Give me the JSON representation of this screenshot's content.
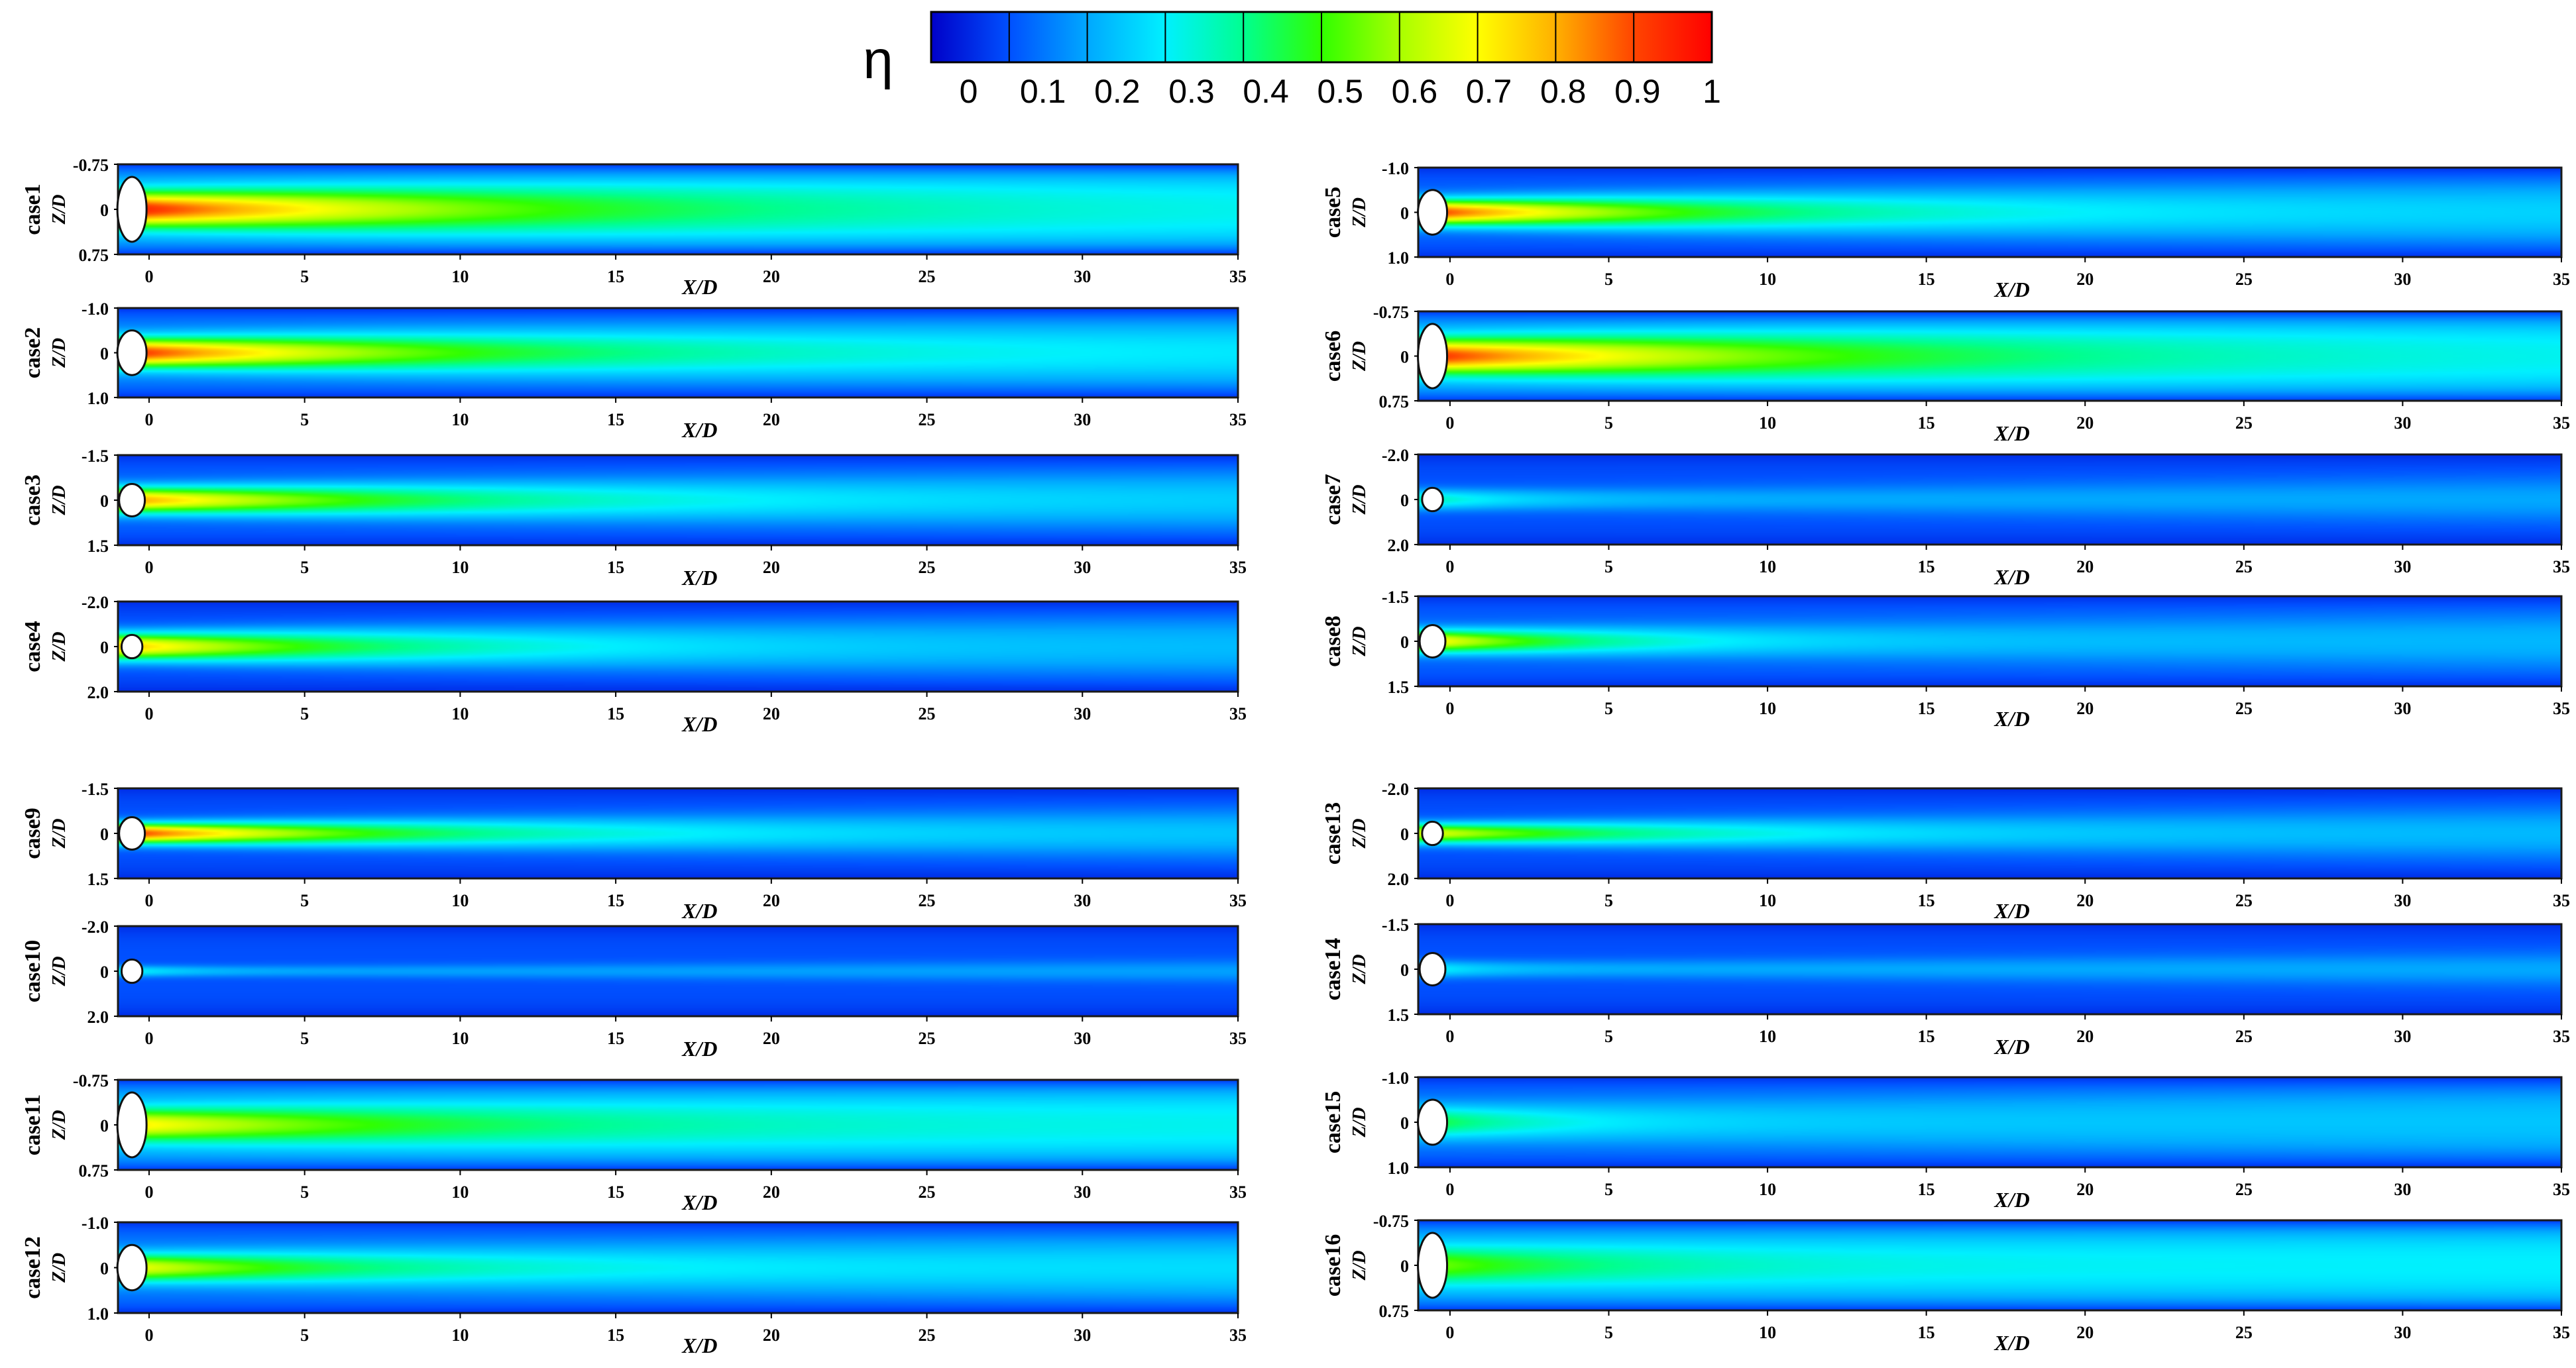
{
  "figure": {
    "colorbar": {
      "symbol": "η",
      "ticks": [
        "0",
        "0.1",
        "0.2",
        "0.3",
        "0.4",
        "0.5",
        "0.6",
        "0.7",
        "0.8",
        "0.9",
        "1"
      ],
      "colormap": [
        "#0000c8",
        "#0050ff",
        "#00a8ff",
        "#00f0ff",
        "#00ff90",
        "#30ff00",
        "#a8ff00",
        "#ffff00",
        "#ffb000",
        "#ff4500",
        "#ff0000"
      ]
    },
    "shared_axes": {
      "x_label": "X/D",
      "y_label": "Z/D",
      "x_ticks": [
        "0",
        "5",
        "10",
        "15",
        "20",
        "25",
        "30",
        "35"
      ]
    }
  },
  "chart_data": [
    {
      "type": "heatmap",
      "case": "case1",
      "y_ticks": [
        "-0.75",
        "0",
        "0.75"
      ],
      "xlim": [
        -1,
        35
      ],
      "ylim": [
        -0.75,
        0.75
      ],
      "field": "eta",
      "peak_eta": 0.95,
      "core_length": 12,
      "far_eta": 0.28,
      "edge_eta": 0.22,
      "spread": 0.38,
      "width_growth": 0.012,
      "hole_half_height": 0.72
    },
    {
      "type": "heatmap",
      "case": "case2",
      "y_ticks": [
        "-1.0",
        "0",
        "1.0"
      ],
      "xlim": [
        -1,
        35
      ],
      "ylim": [
        -1.0,
        1.0
      ],
      "field": "eta",
      "peak_eta": 0.92,
      "core_length": 10,
      "far_eta": 0.27,
      "edge_eta": 0.16,
      "spread": 0.32,
      "width_growth": 0.012,
      "hole_half_height": 0.5
    },
    {
      "type": "heatmap",
      "case": "case3",
      "y_ticks": [
        "-1.5",
        "0",
        "1.5"
      ],
      "xlim": [
        -1,
        35
      ],
      "ylim": [
        -1.5,
        1.5
      ],
      "field": "eta",
      "peak_eta": 0.8,
      "core_length": 9,
      "far_eta": 0.24,
      "edge_eta": 0.12,
      "spread": 0.28,
      "width_growth": 0.012,
      "hole_half_height": 0.36
    },
    {
      "type": "heatmap",
      "case": "case4",
      "y_ticks": [
        "-2.0",
        "0",
        "2.0"
      ],
      "xlim": [
        -1,
        35
      ],
      "ylim": [
        -2.0,
        2.0
      ],
      "field": "eta",
      "peak_eta": 0.75,
      "core_length": 8,
      "far_eta": 0.22,
      "edge_eta": 0.1,
      "spread": 0.3,
      "width_growth": 0.014,
      "hole_half_height": 0.26
    },
    {
      "type": "heatmap",
      "case": "case5",
      "y_ticks": [
        "-1.0",
        "0",
        "1.0"
      ],
      "xlim": [
        -1,
        35
      ],
      "ylim": [
        -1.0,
        1.0
      ],
      "field": "eta",
      "peak_eta": 0.9,
      "core_length": 8,
      "far_eta": 0.25,
      "edge_eta": 0.12,
      "spread": 0.28,
      "width_growth": 0.016,
      "hole_half_height": 0.5
    },
    {
      "type": "heatmap",
      "case": "case6",
      "y_ticks": [
        "-0.75",
        "0",
        "0.75"
      ],
      "xlim": [
        -1,
        35
      ],
      "ylim": [
        -0.75,
        0.75
      ],
      "field": "eta",
      "peak_eta": 0.92,
      "core_length": 12,
      "far_eta": 0.28,
      "edge_eta": 0.22,
      "spread": 0.38,
      "width_growth": 0.012,
      "hole_half_height": 0.72
    },
    {
      "type": "heatmap",
      "case": "case7",
      "y_ticks": [
        "-2.0",
        "0",
        "2.0"
      ],
      "xlim": [
        -1,
        35
      ],
      "ylim": [
        -2.0,
        2.0
      ],
      "field": "eta",
      "peak_eta": 0.35,
      "core_length": 3,
      "far_eta": 0.2,
      "edge_eta": 0.1,
      "spread": 0.22,
      "width_growth": 0.012,
      "hole_half_height": 0.26
    },
    {
      "type": "heatmap",
      "case": "case8",
      "y_ticks": [
        "-1.5",
        "0",
        "1.5"
      ],
      "xlim": [
        -1,
        35
      ],
      "ylim": [
        -1.5,
        1.5
      ],
      "field": "eta",
      "peak_eta": 0.7,
      "core_length": 5,
      "far_eta": 0.22,
      "edge_eta": 0.12,
      "spread": 0.25,
      "width_growth": 0.014,
      "hole_half_height": 0.36
    },
    {
      "type": "heatmap",
      "case": "case9",
      "y_ticks": [
        "-1.5",
        "0",
        "1.5"
      ],
      "xlim": [
        -1,
        35
      ],
      "ylim": [
        -1.5,
        1.5
      ],
      "field": "eta",
      "peak_eta": 0.9,
      "core_length": 8,
      "far_eta": 0.23,
      "edge_eta": 0.1,
      "spread": 0.22,
      "width_growth": 0.014,
      "hole_half_height": 0.36
    },
    {
      "type": "heatmap",
      "case": "case10",
      "y_ticks": [
        "-2.0",
        "0",
        "2.0"
      ],
      "xlim": [
        -1,
        35
      ],
      "ylim": [
        -2.0,
        2.0
      ],
      "field": "eta",
      "peak_eta": 0.3,
      "core_length": 2,
      "far_eta": 0.19,
      "edge_eta": 0.1,
      "spread": 0.12,
      "width_growth": 0.01,
      "hole_half_height": 0.26
    },
    {
      "type": "heatmap",
      "case": "case11",
      "y_ticks": [
        "-0.75",
        "0",
        "0.75"
      ],
      "xlim": [
        -1,
        35
      ],
      "ylim": [
        -0.75,
        0.75
      ],
      "field": "eta",
      "peak_eta": 0.72,
      "core_length": 10,
      "far_eta": 0.3,
      "edge_eta": 0.22,
      "spread": 0.35,
      "width_growth": 0.012,
      "hole_half_height": 0.72
    },
    {
      "type": "heatmap",
      "case": "case12",
      "y_ticks": [
        "-1.0",
        "0",
        "1.0"
      ],
      "xlim": [
        -1,
        35
      ],
      "ylim": [
        -1.0,
        1.0
      ],
      "field": "eta",
      "peak_eta": 0.68,
      "core_length": 7,
      "far_eta": 0.27,
      "edge_eta": 0.15,
      "spread": 0.3,
      "width_growth": 0.012,
      "hole_half_height": 0.5
    },
    {
      "type": "heatmap",
      "case": "case13",
      "y_ticks": [
        "-2.0",
        "0",
        "2.0"
      ],
      "xlim": [
        -1,
        35
      ],
      "ylim": [
        -2.0,
        2.0
      ],
      "field": "eta",
      "peak_eta": 0.65,
      "core_length": 7,
      "far_eta": 0.22,
      "edge_eta": 0.1,
      "spread": 0.22,
      "width_growth": 0.016,
      "hole_half_height": 0.26
    },
    {
      "type": "heatmap",
      "case": "case14",
      "y_ticks": [
        "-1.5",
        "0",
        "1.5"
      ],
      "xlim": [
        -1,
        35
      ],
      "ylim": [
        -1.5,
        1.5
      ],
      "field": "eta",
      "peak_eta": 0.3,
      "core_length": 2,
      "far_eta": 0.2,
      "edge_eta": 0.1,
      "spread": 0.18,
      "width_growth": 0.01,
      "hole_half_height": 0.36
    },
    {
      "type": "heatmap",
      "case": "case15",
      "y_ticks": [
        "-1.0",
        "0",
        "1.0"
      ],
      "xlim": [
        -1,
        35
      ],
      "ylim": [
        -1.0,
        1.0
      ],
      "field": "eta",
      "peak_eta": 0.45,
      "core_length": 4,
      "far_eta": 0.24,
      "edge_eta": 0.14,
      "spread": 0.35,
      "width_growth": 0.014,
      "hole_half_height": 0.5
    },
    {
      "type": "heatmap",
      "case": "case16",
      "y_ticks": [
        "-0.75",
        "0",
        "0.75"
      ],
      "xlim": [
        -1,
        35
      ],
      "ylim": [
        -0.75,
        0.75
      ],
      "field": "eta",
      "peak_eta": 0.55,
      "core_length": 6,
      "far_eta": 0.3,
      "edge_eta": 0.22,
      "spread": 0.4,
      "width_growth": 0.012,
      "hole_half_height": 0.72
    }
  ]
}
